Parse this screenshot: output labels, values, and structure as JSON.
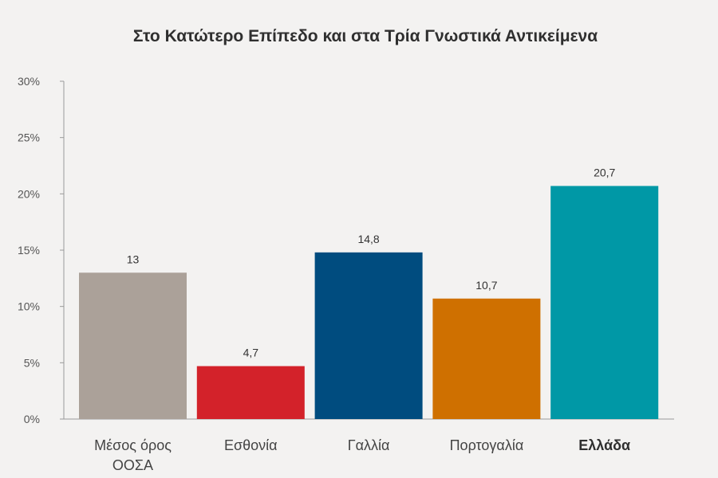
{
  "chart_data": {
    "type": "bar",
    "title": "Στο Κατώτερο Επίπεδο και στα Τρία Γνωστικά Αντικείμενα",
    "categories": [
      {
        "label": [
          "Μέσος όρος",
          "ΟΟΣΑ"
        ],
        "bold": false
      },
      {
        "label": [
          "Εσθονία"
        ],
        "bold": false
      },
      {
        "label": [
          "Γαλλία"
        ],
        "bold": false
      },
      {
        "label": [
          "Πορτογαλία"
        ],
        "bold": false
      },
      {
        "label": [
          "Ελλάδα"
        ],
        "bold": true
      }
    ],
    "values": [
      13,
      4.7,
      14.8,
      10.7,
      20.7
    ],
    "value_labels": [
      "13",
      "4,7",
      "14,8",
      "10,7",
      "20,7"
    ],
    "colors": [
      "#aba199",
      "#d3222a",
      "#004c7f",
      "#cf7000",
      "#0098a6"
    ],
    "ylim": [
      0,
      30
    ],
    "yticks": [
      0,
      5,
      10,
      15,
      20,
      25,
      30
    ],
    "ytick_labels": [
      "0%",
      "5%",
      "10%",
      "15%",
      "20%",
      "25%",
      "30%"
    ],
    "grid": false,
    "legend": "none"
  }
}
